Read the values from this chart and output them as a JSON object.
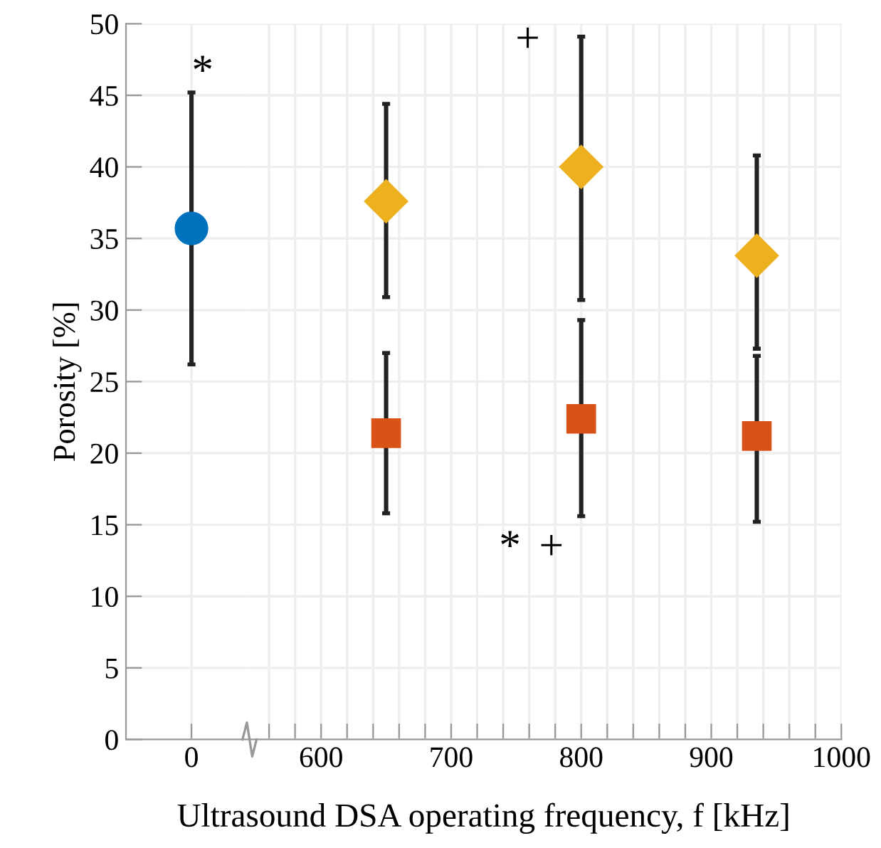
{
  "chart_data": [
    {
      "type": "scatter",
      "ylabel": "Porosity [%]",
      "categories": [
        "0"
      ],
      "ylim": [
        0,
        50
      ],
      "yticks": [
        0,
        5,
        10,
        15,
        20,
        25,
        30,
        35,
        40,
        45,
        50
      ],
      "grid": true,
      "series": [
        {
          "color": "#0072bd",
          "marker": "circle",
          "values": [
            35.7
          ],
          "errors": [
            [
              26.2,
              45.2
            ]
          ]
        }
      ],
      "annotations": [
        "*"
      ]
    },
    {
      "type": "scatter",
      "xlabel": "Ultrasound DSA operating frequency, f [kHz]",
      "xlim": [
        545,
        1000
      ],
      "xticks": [
        {
          "value": 560,
          "label": null
        },
        {
          "value": 580,
          "label": null
        },
        600,
        {
          "value": 620,
          "label": null
        },
        {
          "value": 640,
          "label": null
        },
        {
          "value": 660,
          "label": null
        },
        {
          "value": 680,
          "label": null
        },
        700,
        {
          "value": 720,
          "label": null
        },
        {
          "value": 740,
          "label": null
        },
        {
          "value": 760,
          "label": null
        },
        {
          "value": 780,
          "label": null
        },
        800,
        {
          "value": 820,
          "label": null
        },
        {
          "value": 840,
          "label": null
        },
        {
          "value": 860,
          "label": null
        },
        {
          "value": 880,
          "label": null
        },
        900,
        {
          "value": 920,
          "label": null
        },
        {
          "value": 940,
          "label": null
        },
        {
          "value": 960,
          "label": null
        },
        {
          "value": 980,
          "label": null
        },
        1000
      ],
      "ylim": [
        0,
        50
      ],
      "yticks": [
        0,
        5,
        10,
        15,
        20,
        25,
        30,
        35,
        40,
        45,
        50
      ],
      "tick_labels": "x",
      "grid": true,
      "series": [
        {
          "color": "#edb120",
          "marker": "diamond",
          "x": [
            650,
            800,
            935
          ],
          "values": [
            37.6,
            40.0,
            33.8
          ],
          "errors": [
            [
              30.9,
              44.4
            ],
            [
              30.7,
              49.1
            ],
            [
              27.3,
              40.8
            ]
          ]
        },
        {
          "color": "#d95319",
          "marker": "square",
          "x": [
            650,
            800,
            935
          ],
          "values": [
            21.4,
            22.4,
            21.2
          ],
          "errors": [
            [
              15.8,
              27.0
            ],
            [
              15.6,
              29.3
            ],
            [
              15.2,
              26.8
            ]
          ]
        }
      ],
      "annotations": [
        "+",
        "*",
        "+"
      ]
    }
  ]
}
